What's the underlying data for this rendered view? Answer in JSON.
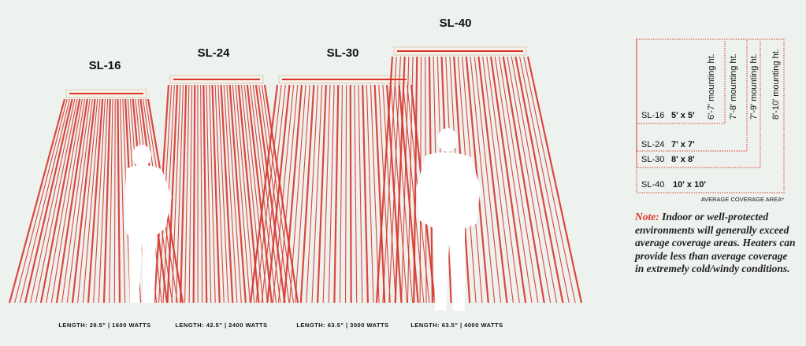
{
  "heaters": [
    {
      "model": "SL-16",
      "length": "LENGTH: 29.5\" | 1600 WATTS"
    },
    {
      "model": "SL-24",
      "length": "LENGTH: 42.5\" | 2400 WATTS"
    },
    {
      "model": "SL-30",
      "length": "LENGTH: 63.5\" | 3000 WATTS"
    },
    {
      "model": "SL-40",
      "length": "LENGTH: 63.5\" | 4000 WATTS"
    }
  ],
  "coverage": {
    "rows": [
      {
        "model": "SL-16",
        "area": "5' x 5'",
        "height": "6'-7' mounting ht."
      },
      {
        "model": "SL-24",
        "area": "7' x 7'",
        "height": "7'-8' mounting ht."
      },
      {
        "model": "SL-30",
        "area": "8' x 8'",
        "height": "7'-9' mounting ht."
      },
      {
        "model": "SL-40",
        "area": "10' x 10'",
        "height": "8'-10' mounting ht."
      }
    ],
    "caption": "AVERAGE COVERAGE AREA*"
  },
  "note": {
    "label": "Note:",
    "text": "Indoor or well-protected environments will generally exceed average coverage areas. Heaters can provide less than average coverage in extremely cold/windy conditions."
  }
}
